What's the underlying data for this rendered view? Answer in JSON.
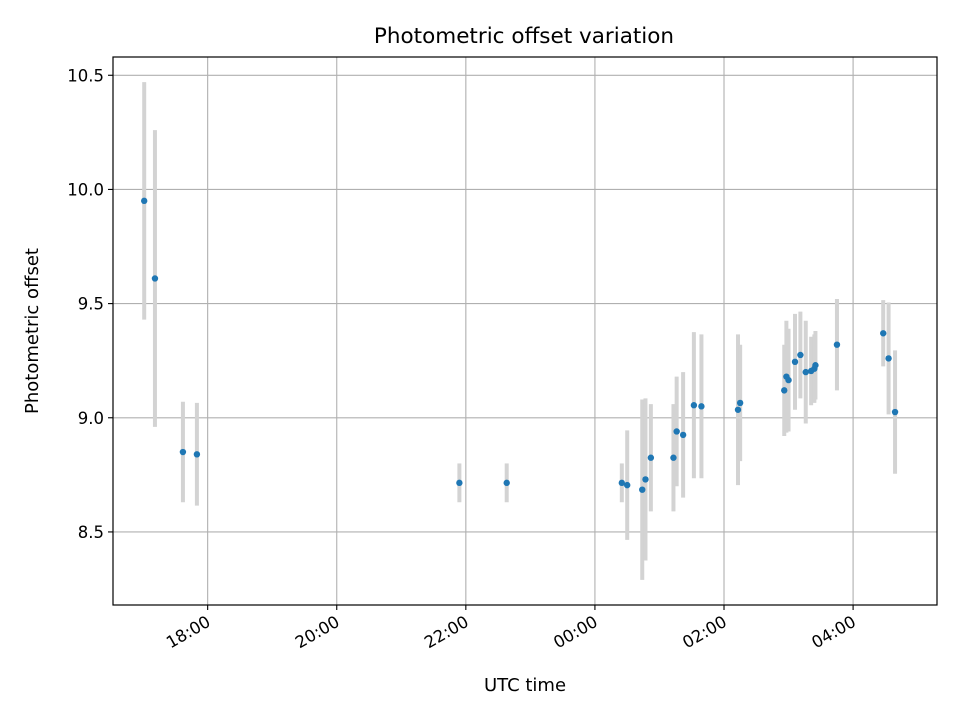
{
  "colors": {
    "point": "#1f77b4",
    "errorbar": "#d3d3d3",
    "grid": "#b0b0b0",
    "axes": "#000000"
  },
  "chart_data": {
    "type": "scatter",
    "title": "Photometric offset variation",
    "xlabel": "UTC time",
    "ylabel": "Photometric offset",
    "grid": true,
    "legend": "none",
    "x_is_time": true,
    "xlim": [
      "16:32",
      "05:18"
    ],
    "ylim": [
      8.18,
      10.58
    ],
    "xticks": [
      "18:00",
      "20:00",
      "22:00",
      "00:00",
      "02:00",
      "04:00"
    ],
    "yticks": [
      8.5,
      9.0,
      9.5,
      10.0,
      10.5
    ],
    "ytick_labels": [
      "8.5",
      "9.0",
      "9.5",
      "10.0",
      "10.5"
    ],
    "points": [
      {
        "x": "17:01",
        "y": 9.95,
        "err": 0.52
      },
      {
        "x": "17:11",
        "y": 9.61,
        "err": 0.65
      },
      {
        "x": "17:37",
        "y": 8.85,
        "err": 0.22
      },
      {
        "x": "17:50",
        "y": 8.84,
        "err": 0.225
      },
      {
        "x": "21:54",
        "y": 8.715,
        "err": 0.085
      },
      {
        "x": "22:38",
        "y": 8.715,
        "err": 0.085
      },
      {
        "x": "00:25",
        "y": 8.715,
        "err": 0.085
      },
      {
        "x": "00:30",
        "y": 8.705,
        "err": 0.24
      },
      {
        "x": "00:44",
        "y": 8.685,
        "err": 0.395
      },
      {
        "x": "00:47",
        "y": 8.73,
        "err": 0.355
      },
      {
        "x": "00:52",
        "y": 8.825,
        "err": 0.235
      },
      {
        "x": "01:13",
        "y": 8.825,
        "err": 0.235
      },
      {
        "x": "01:16",
        "y": 8.94,
        "err": 0.24
      },
      {
        "x": "01:22",
        "y": 8.925,
        "err": 0.275
      },
      {
        "x": "01:32",
        "y": 9.055,
        "err": 0.32
      },
      {
        "x": "01:39",
        "y": 9.05,
        "err": 0.315
      },
      {
        "x": "02:13",
        "y": 9.035,
        "err": 0.33
      },
      {
        "x": "02:15",
        "y": 9.065,
        "err": 0.255
      },
      {
        "x": "02:56",
        "y": 9.12,
        "err": 0.2
      },
      {
        "x": "02:58",
        "y": 9.18,
        "err": 0.245
      },
      {
        "x": "03:00",
        "y": 9.165,
        "err": 0.225
      },
      {
        "x": "03:06",
        "y": 9.245,
        "err": 0.21
      },
      {
        "x": "03:11",
        "y": 9.275,
        "err": 0.19
      },
      {
        "x": "03:16",
        "y": 9.2,
        "err": 0.225
      },
      {
        "x": "03:21",
        "y": 9.205,
        "err": 0.15
      },
      {
        "x": "03:24",
        "y": 9.215,
        "err": 0.15
      },
      {
        "x": "03:25",
        "y": 9.23,
        "err": 0.15
      },
      {
        "x": "03:45",
        "y": 9.32,
        "err": 0.2
      },
      {
        "x": "04:28",
        "y": 9.37,
        "err": 0.145
      },
      {
        "x": "04:33",
        "y": 9.26,
        "err": 0.245
      },
      {
        "x": "04:39",
        "y": 9.025,
        "err": 0.27
      }
    ]
  }
}
